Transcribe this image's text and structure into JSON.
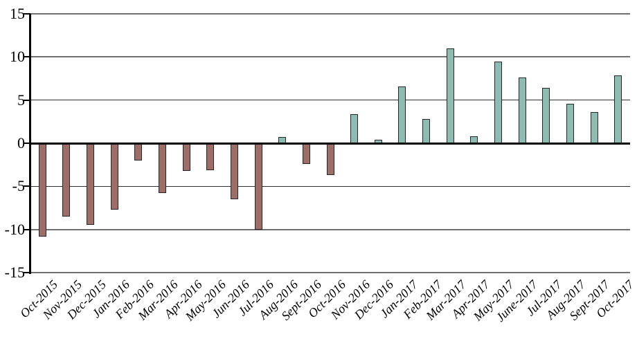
{
  "chart_data": {
    "type": "bar",
    "title": "",
    "xlabel": "",
    "ylabel": "",
    "categories": [
      "Oct-2015",
      "Nov-2015",
      "Dec-2015",
      "Jan-2016",
      "Feb-2016",
      "Mar-2016",
      "Apr-2016",
      "May-2016",
      "Jun-2016",
      "Jul-2016",
      "Aug-2016",
      "Sept-2016",
      "Oct-2016",
      "Nov-2016",
      "Dec-2016",
      "Jan-2017",
      "Feb-2017",
      "Mar-2017",
      "Apr-2017",
      "May-2017",
      "June-2017",
      "Jul-2017",
      "Aug-2017",
      "Sept-2017",
      "Oct-2017"
    ],
    "values": [
      -10.8,
      -8.5,
      -9.5,
      -7.7,
      -2.0,
      -5.8,
      -3.2,
      -3.1,
      -6.5,
      -10.0,
      0.7,
      -2.4,
      -3.7,
      3.4,
      0.4,
      6.6,
      2.8,
      11.0,
      0.8,
      9.5,
      7.6,
      6.4,
      4.6,
      3.6,
      7.9
    ],
    "ylim": [
      -15,
      15
    ],
    "yticks": [
      15,
      10,
      5,
      0,
      -5,
      -10,
      -15
    ],
    "grid": true,
    "legend_position": "none",
    "colors": {
      "positive_bar": "#8FBCB2",
      "negative_bar": "#9D6E67",
      "bar_border": "#262626",
      "zero_line": "#000000",
      "axis_line": "#000000",
      "gridline_major": "#707070",
      "gridline_minor": "#2E2E2E",
      "label_text": "#000000",
      "background": "#FFFFFF"
    }
  }
}
